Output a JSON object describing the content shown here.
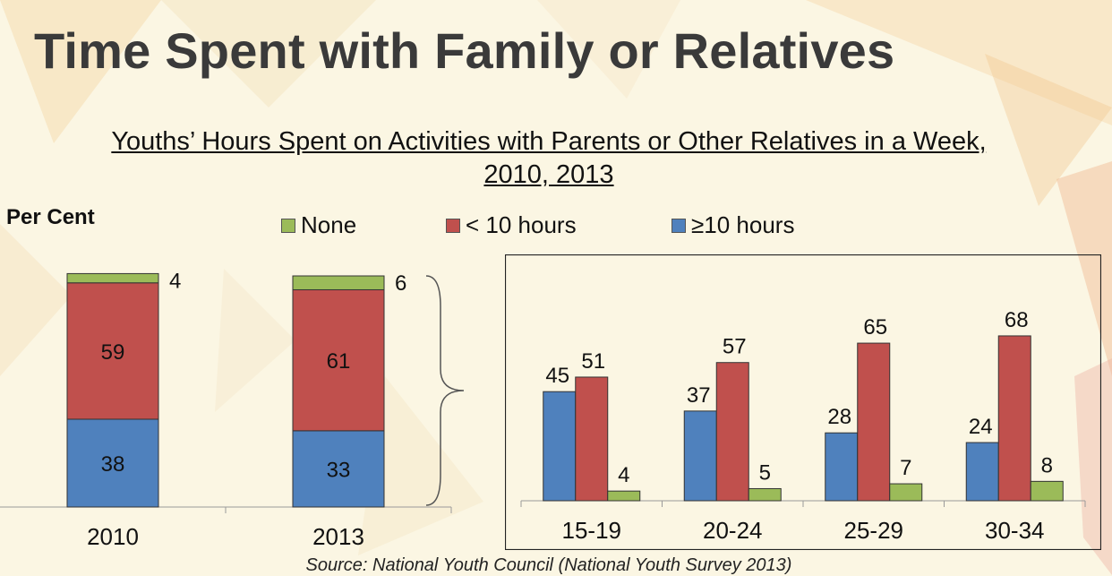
{
  "slide_title": "Time Spent with Family or Relatives",
  "chart_title_line1": "Youths’ Hours Spent on Activities with Parents or Other Relatives in a Week,",
  "chart_title_line2": "2010, 2013",
  "y_axis_label": "Per Cent",
  "legend": [
    {
      "label": "None",
      "color": "#9bbb59"
    },
    {
      "label": "< 10 hours",
      "color": "#c0504d"
    },
    {
      "label": "≥10 hours",
      "color": "#4f81bd"
    }
  ],
  "source": "Source: National Youth Council (National Youth Survey 2013)",
  "chart_data": [
    {
      "type": "bar",
      "stacked": true,
      "categories": [
        "2010",
        "2013"
      ],
      "series": [
        {
          "name": "≥10 hours",
          "color": "#4f81bd",
          "values": [
            38,
            33
          ]
        },
        {
          "name": "< 10 hours",
          "color": "#c0504d",
          "values": [
            59,
            61
          ]
        },
        {
          "name": "None",
          "color": "#9bbb59",
          "values": [
            4,
            6
          ]
        }
      ],
      "ylabel": "Per Cent",
      "ylim": [
        0,
        100
      ]
    },
    {
      "type": "bar",
      "stacked": false,
      "categories": [
        "15-19",
        "20-24",
        "25-29",
        "30-34"
      ],
      "series": [
        {
          "name": "≥10 hours",
          "color": "#4f81bd",
          "values": [
            45,
            37,
            28,
            24
          ]
        },
        {
          "name": "< 10 hours",
          "color": "#c0504d",
          "values": [
            51,
            57,
            65,
            68
          ]
        },
        {
          "name": "None",
          "color": "#9bbb59",
          "values": [
            4,
            5,
            7,
            8
          ]
        }
      ],
      "ylim": [
        0,
        75
      ]
    }
  ]
}
